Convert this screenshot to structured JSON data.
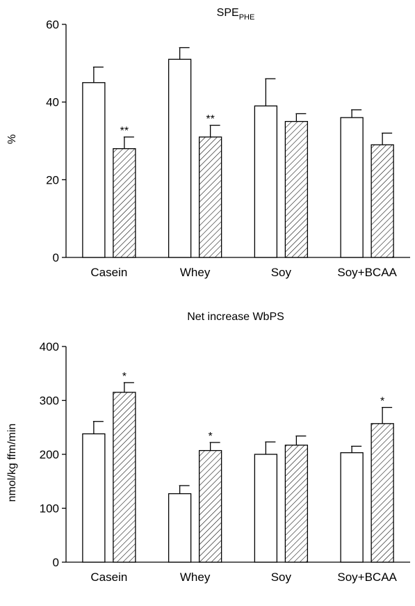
{
  "chart_data": [
    {
      "type": "bar",
      "title": "SPE",
      "title_subscript": "PHE",
      "xlabel": "",
      "ylabel": "%",
      "ylim": [
        0,
        60
      ],
      "yticks": [
        0,
        20,
        40,
        60
      ],
      "categories": [
        "Casein",
        "Whey",
        "Soy",
        "Soy+BCAA"
      ],
      "series": [
        {
          "pattern": "open",
          "values": [
            45,
            51,
            39,
            36
          ],
          "errors": [
            4,
            3,
            7,
            2
          ]
        },
        {
          "pattern": "hatched",
          "values": [
            28,
            31,
            35,
            29
          ],
          "errors": [
            3,
            3,
            2,
            3
          ]
        }
      ],
      "significance": [
        "**",
        "**",
        "",
        ""
      ],
      "grid": false
    },
    {
      "type": "bar",
      "title": "Net increase WbPS",
      "xlabel": "",
      "ylabel": "nmol/kg ffm/min",
      "ylim": [
        0,
        400
      ],
      "yticks": [
        0,
        100,
        200,
        300,
        400
      ],
      "categories": [
        "Casein",
        "Whey",
        "Soy",
        "Soy+BCAA"
      ],
      "series": [
        {
          "pattern": "open",
          "values": [
            238,
            127,
            200,
            203
          ],
          "errors": [
            23,
            15,
            23,
            12
          ]
        },
        {
          "pattern": "hatched",
          "values": [
            315,
            207,
            217,
            257
          ],
          "errors": [
            18,
            15,
            17,
            30
          ]
        }
      ],
      "significance": [
        "*",
        "*",
        "",
        "*"
      ],
      "grid": false
    }
  ]
}
